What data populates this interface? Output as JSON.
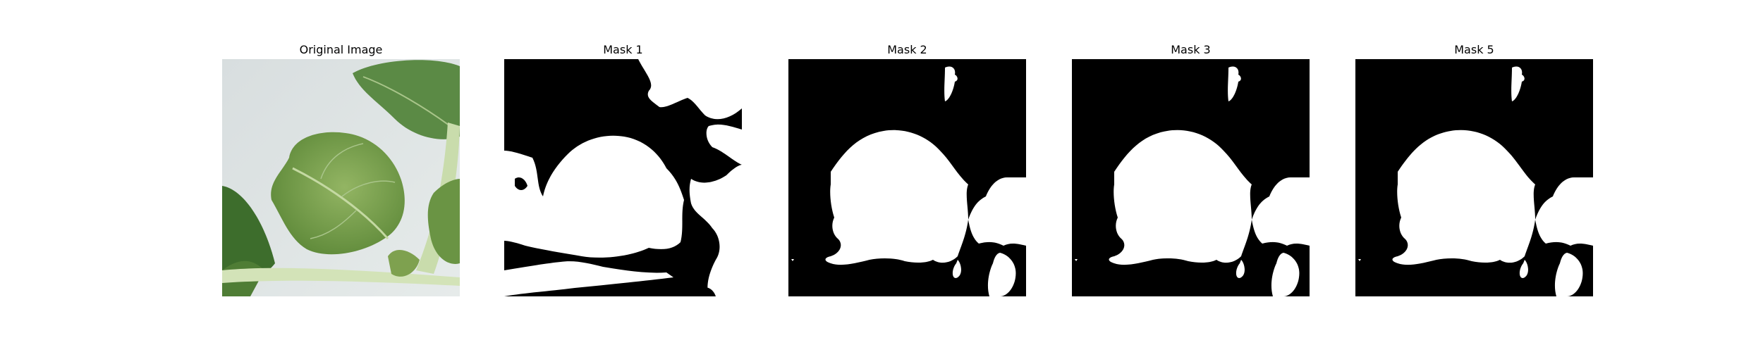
{
  "figure": {
    "panels": [
      {
        "title": "Original Image",
        "kind": "photo",
        "subject": "green leafy plant leaves on light surface"
      },
      {
        "title": "Mask 1",
        "kind": "binary-mask"
      },
      {
        "title": "Mask 2",
        "kind": "binary-mask"
      },
      {
        "title": "Mask 3",
        "kind": "binary-mask"
      },
      {
        "title": "Mask 5",
        "kind": "binary-mask"
      }
    ]
  },
  "colors": {
    "background": "#ffffff",
    "mask_foreground": "#ffffff",
    "mask_background": "#000000",
    "leaf_dark": "#4f7a35",
    "leaf_light": "#8fb062",
    "stem": "#c9d9a8",
    "surface": "#dde3e3"
  }
}
